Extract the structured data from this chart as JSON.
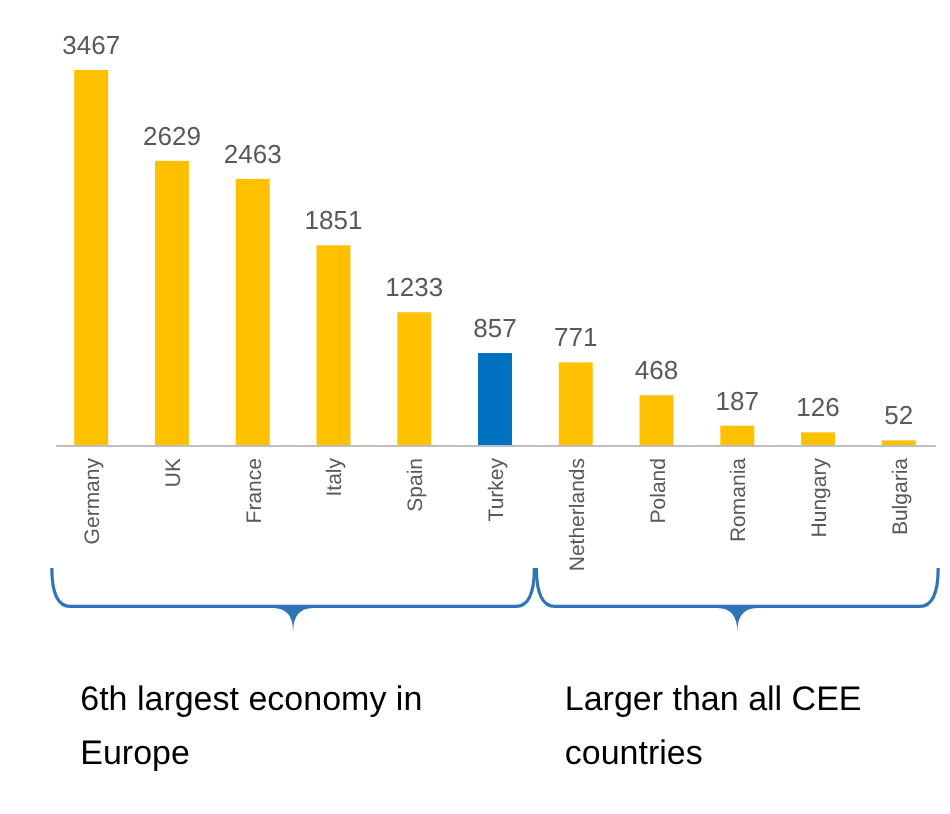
{
  "chart_data": {
    "type": "bar",
    "categories": [
      "Germany",
      "UK",
      "France",
      "Italy",
      "Spain",
      "Turkey",
      "Netherlands",
      "Poland",
      "Romania",
      "Hungary",
      "Bulgaria"
    ],
    "values": [
      3467,
      2629,
      2463,
      1851,
      1233,
      857,
      771,
      468,
      187,
      126,
      52
    ],
    "colors": [
      "#ffc000",
      "#ffc000",
      "#ffc000",
      "#ffc000",
      "#ffc000",
      "#0070c0",
      "#ffc000",
      "#ffc000",
      "#ffc000",
      "#ffc000",
      "#ffc000"
    ],
    "data_labels": true,
    "annotations": [
      "6th largest economy in Europe",
      "Larger than all CEE countries"
    ]
  }
}
